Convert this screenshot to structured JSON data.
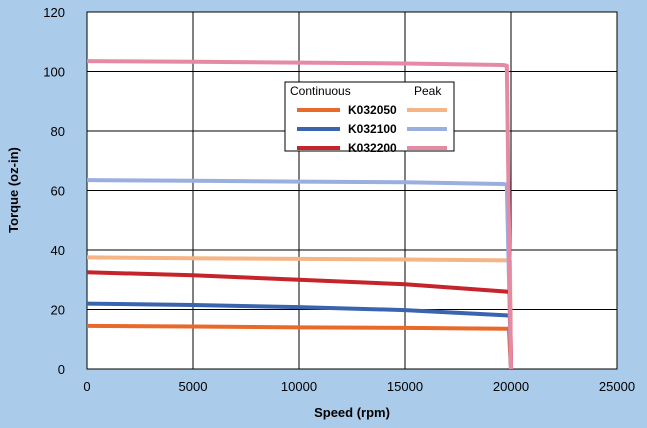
{
  "chart_data": {
    "type": "line",
    "xlabel": "Speed (rpm)",
    "ylabel": "Torque (oz-in)",
    "xlim": [
      0,
      25000
    ],
    "ylim": [
      0,
      120
    ],
    "xticks": [
      0,
      5000,
      10000,
      15000,
      20000,
      25000
    ],
    "yticks": [
      0,
      20,
      40,
      60,
      80,
      100,
      120
    ],
    "grid": true,
    "legend": {
      "placement": "top-center",
      "header_left": "Continuous",
      "header_right": "Peak"
    },
    "series": [
      {
        "name": "K032050",
        "kind": "Continuous",
        "color": "#e8692a",
        "points": [
          [
            0,
            14.5
          ],
          [
            5000,
            14.3
          ],
          [
            10000,
            14.0
          ],
          [
            15000,
            13.8
          ],
          [
            19800,
            13.5
          ],
          [
            19900,
            13.5
          ],
          [
            20000,
            0
          ]
        ]
      },
      {
        "name": "K032050",
        "kind": "Peak",
        "color": "#f6b586",
        "points": [
          [
            0,
            37.5
          ],
          [
            5000,
            37.2
          ],
          [
            10000,
            37.0
          ],
          [
            15000,
            36.8
          ],
          [
            19800,
            36.5
          ],
          [
            19950,
            36.3
          ],
          [
            20000,
            0
          ]
        ]
      },
      {
        "name": "K032100",
        "kind": "Continuous",
        "color": "#3a64ad",
        "points": [
          [
            0,
            22.0
          ],
          [
            5000,
            21.5
          ],
          [
            10000,
            20.8
          ],
          [
            15000,
            19.8
          ],
          [
            19800,
            18.0
          ],
          [
            19950,
            17.8
          ],
          [
            20000,
            0
          ]
        ]
      },
      {
        "name": "K032100",
        "kind": "Peak",
        "color": "#9aaee0",
        "points": [
          [
            0,
            63.5
          ],
          [
            5000,
            63.3
          ],
          [
            10000,
            63.0
          ],
          [
            15000,
            62.8
          ],
          [
            19600,
            62.2
          ],
          [
            19800,
            62.0
          ],
          [
            20000,
            0
          ]
        ]
      },
      {
        "name": "K032200",
        "kind": "Continuous",
        "color": "#c5242a",
        "points": [
          [
            0,
            32.5
          ],
          [
            5000,
            31.5
          ],
          [
            10000,
            30.0
          ],
          [
            15000,
            28.5
          ],
          [
            19800,
            26.0
          ],
          [
            19950,
            25.8
          ],
          [
            20000,
            0
          ]
        ]
      },
      {
        "name": "K032200",
        "kind": "Peak",
        "color": "#e48aa5",
        "points": [
          [
            0,
            103.5
          ],
          [
            5000,
            103.3
          ],
          [
            10000,
            103.0
          ],
          [
            15000,
            102.7
          ],
          [
            19600,
            102.2
          ],
          [
            19800,
            102.0
          ],
          [
            20000,
            0
          ]
        ]
      }
    ]
  }
}
